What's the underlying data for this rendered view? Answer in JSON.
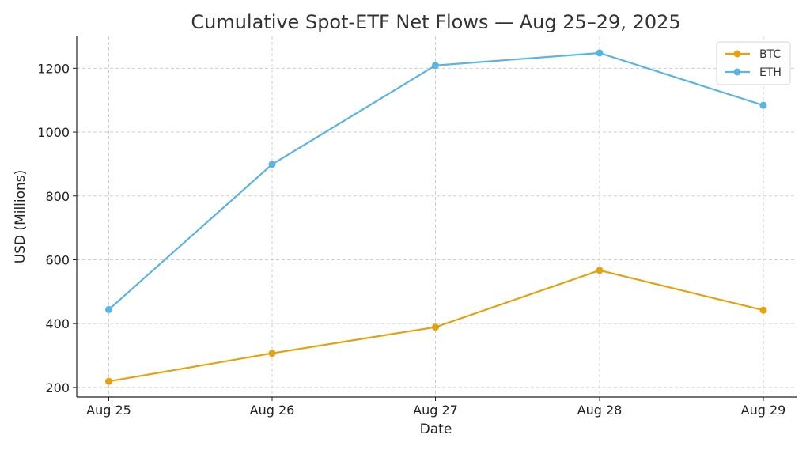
{
  "chart_data": {
    "type": "line",
    "title": "Cumulative Spot-ETF Net Flows — Aug 25–29, 2025",
    "xlabel": "Date",
    "ylabel": "USD (Millions)",
    "categories": [
      "Aug 25",
      "Aug 26",
      "Aug 27",
      "Aug 28",
      "Aug 29"
    ],
    "ylim": [
      170,
      1300
    ],
    "yticks": [
      200,
      400,
      600,
      800,
      1000,
      1200
    ],
    "grid": true,
    "legend_position": "top-right",
    "series": [
      {
        "name": "BTC",
        "color": "#E5A10E",
        "values": [
          219,
          307,
          389,
          567,
          442
        ]
      },
      {
        "name": "ETH",
        "color": "#5AB4E3",
        "values": [
          444,
          899,
          1209,
          1248,
          1084
        ]
      }
    ]
  }
}
